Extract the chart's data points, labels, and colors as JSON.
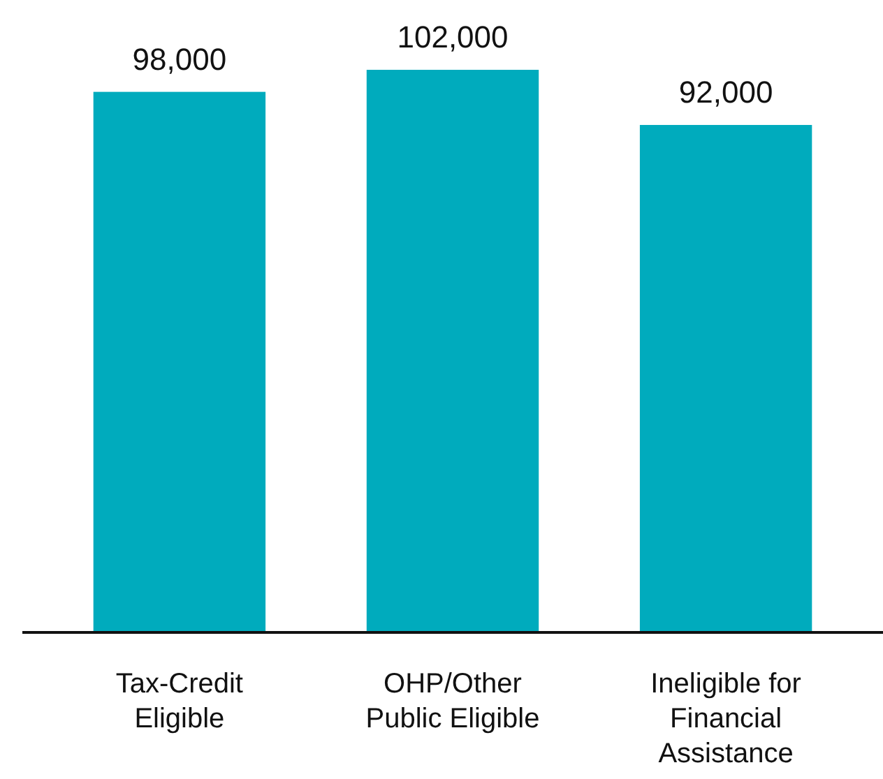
{
  "chart_data": {
    "type": "bar",
    "categories": [
      "Tax-Credit Eligible",
      "OHP/Other Public Eligible",
      "Ineligible for Financial Assistance"
    ],
    "values": [
      98000,
      102000,
      92000
    ],
    "value_labels": [
      "98,000",
      "102,000",
      "92,000"
    ],
    "color": "#00abbd"
  }
}
